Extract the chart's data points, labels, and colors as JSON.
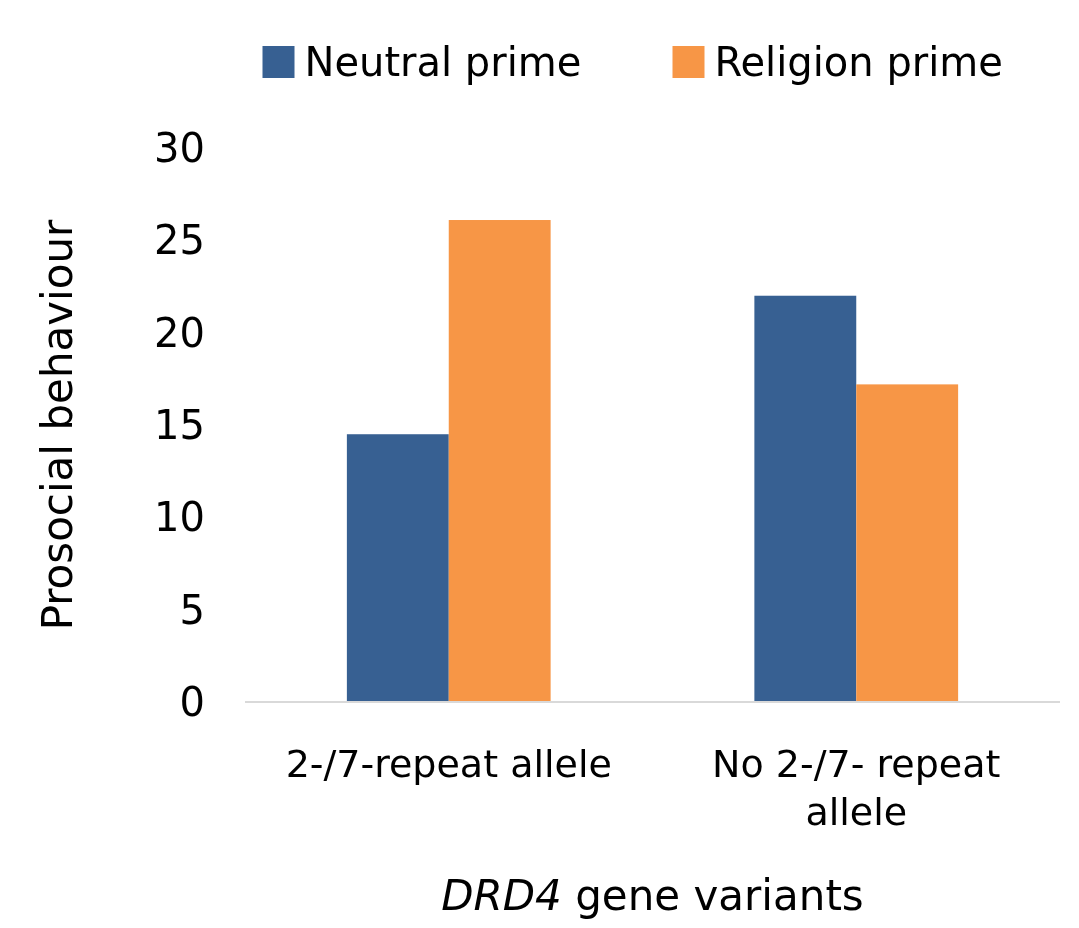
{
  "chart_data": {
    "type": "bar",
    "xlabel": "DRD4 gene variants",
    "ylabel": "Prosocial behaviour",
    "categories": [
      "2-/7-repeat allele",
      "No 2-/7- repeat allele"
    ],
    "series": [
      {
        "name": "Neutral prime",
        "color": "#376092",
        "values": [
          14.5,
          22
        ]
      },
      {
        "name": "Religion prime",
        "color": "#f79646",
        "values": [
          26.1,
          17.2
        ]
      }
    ],
    "ylim": [
      0,
      30
    ],
    "yticks": [
      0,
      5,
      10,
      15,
      20,
      25,
      30
    ],
    "grid": false,
    "legend": "top"
  }
}
